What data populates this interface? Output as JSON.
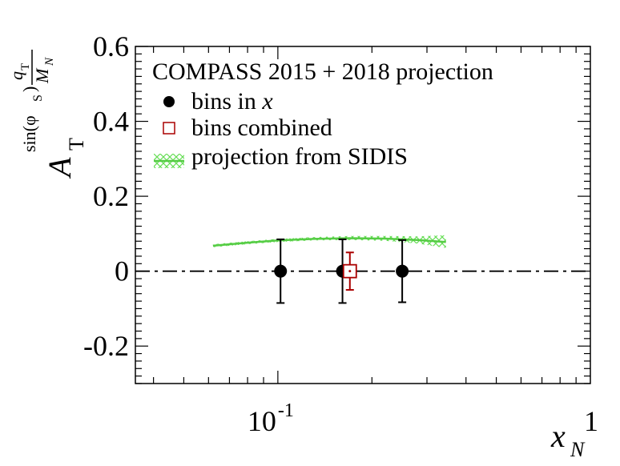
{
  "chart_data": {
    "type": "scatter",
    "title": "",
    "xscale": "log",
    "xlim": [
      0.035,
      1.0
    ],
    "ylim": [
      -0.3,
      0.6
    ],
    "xlabel": {
      "main": "x",
      "sub": "N"
    },
    "ylabel": {
      "main": "A",
      "sub": "T",
      "sup_num": "q",
      "sup_num_sub": "T",
      "sup_den": "M",
      "sup_den_sub": "N",
      "sup_prefix": "sin(φ",
      "sup_prefix_sub": "S",
      "sup_close": ")"
    },
    "x_ticks": [
      {
        "value": 0.1,
        "base": "10",
        "exp": "-1"
      },
      {
        "value": 1.0,
        "label": "1"
      }
    ],
    "y_ticks": [
      {
        "value": -0.2,
        "label": "-0.2"
      },
      {
        "value": 0,
        "label": "0"
      },
      {
        "value": 0.2,
        "label": "0.2"
      },
      {
        "value": 0.4,
        "label": "0.4"
      },
      {
        "value": 0.6,
        "label": "0.6"
      }
    ],
    "reference_line": {
      "y": 0,
      "style": "dash-dot"
    },
    "series": [
      {
        "name": "bins in x",
        "marker": "filled-circle",
        "color": "#000000",
        "points": [
          {
            "x": 0.102,
            "y": 0.0,
            "err": 0.085
          },
          {
            "x": 0.161,
            "y": 0.0,
            "err": 0.085
          },
          {
            "x": 0.25,
            "y": 0.0,
            "err": 0.083
          }
        ]
      },
      {
        "name": "bins combined",
        "marker": "open-square",
        "color": "#aa0000",
        "points": [
          {
            "x": 0.17,
            "y": 0.0,
            "err": 0.05
          }
        ]
      },
      {
        "name": "projection from SIDIS",
        "type": "band",
        "color": "#55cc44",
        "x": [
          0.062,
          0.08,
          0.1,
          0.13,
          0.17,
          0.22,
          0.28,
          0.345
        ],
        "y": [
          0.068,
          0.076,
          0.082,
          0.086,
          0.088,
          0.087,
          0.083,
          0.078
        ],
        "y_lo": [
          0.064,
          0.072,
          0.078,
          0.082,
          0.083,
          0.081,
          0.074,
          0.062
        ],
        "y_hi": [
          0.072,
          0.08,
          0.086,
          0.091,
          0.094,
          0.094,
          0.093,
          0.096
        ]
      }
    ],
    "legend": {
      "header": "COMPASS 2015 + 2018 projection",
      "position": "top-left",
      "entries": [
        {
          "text": "bins in ",
          "italic": "x",
          "marker": "filled-circle"
        },
        {
          "text": "bins combined",
          "italic": "",
          "marker": "open-square"
        },
        {
          "text": "projection from SIDIS",
          "italic": "",
          "marker": "band"
        }
      ]
    }
  }
}
